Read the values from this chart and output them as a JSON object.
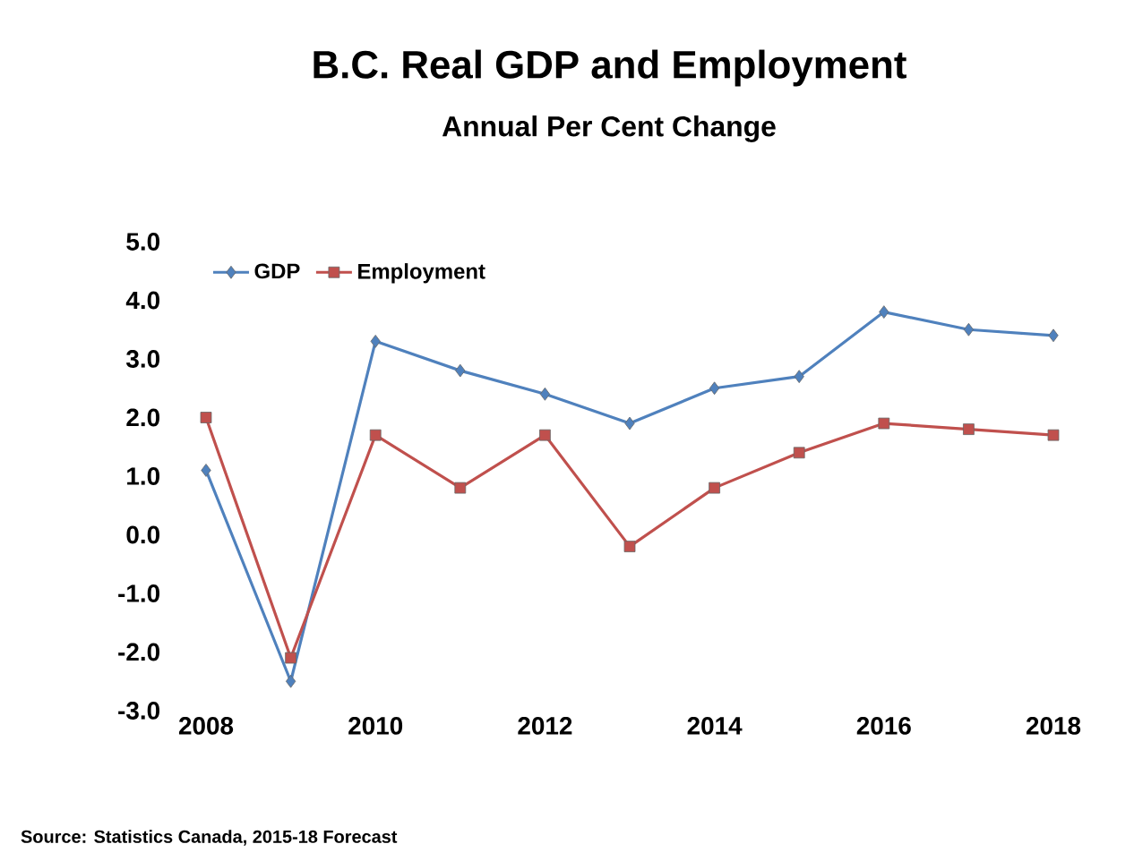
{
  "chart_data": {
    "type": "line",
    "title": "B.C. Real GDP and Employment",
    "subtitle": "Annual Per Cent Change",
    "x": [
      2008,
      2009,
      2010,
      2011,
      2012,
      2013,
      2014,
      2015,
      2016,
      2017,
      2018
    ],
    "series": [
      {
        "name": "GDP",
        "color": "#4f81bd",
        "marker": "diamond",
        "values": [
          1.1,
          -2.5,
          3.3,
          2.8,
          2.4,
          1.9,
          2.5,
          2.7,
          3.8,
          3.5,
          3.4
        ]
      },
      {
        "name": "Employment",
        "color": "#c0504d",
        "marker": "square",
        "values": [
          2.0,
          -2.1,
          1.7,
          0.8,
          1.7,
          -0.2,
          0.8,
          1.4,
          1.9,
          1.8,
          1.7
        ]
      }
    ],
    "xlim": [
      2008,
      2018
    ],
    "xticks": [
      2008,
      2010,
      2012,
      2014,
      2016,
      2018
    ],
    "ylim": [
      -3,
      5
    ],
    "yticks": [
      {
        "value": -3,
        "label": "-3.0"
      },
      {
        "value": -2,
        "label": "-2.0"
      },
      {
        "value": -1,
        "label": "-1.0"
      },
      {
        "value": 0,
        "label": "0.0"
      },
      {
        "value": 1,
        "label": "1.0"
      },
      {
        "value": 2,
        "label": "2.0"
      },
      {
        "value": 3,
        "label": "3.0"
      },
      {
        "value": 4,
        "label": "4.0"
      },
      {
        "value": 5,
        "label": "5.0"
      }
    ],
    "legend": "top left",
    "line_style": "solid",
    "annotations": [
      "Source:  Statistics Canada, 2015-18 Forecast"
    ]
  }
}
